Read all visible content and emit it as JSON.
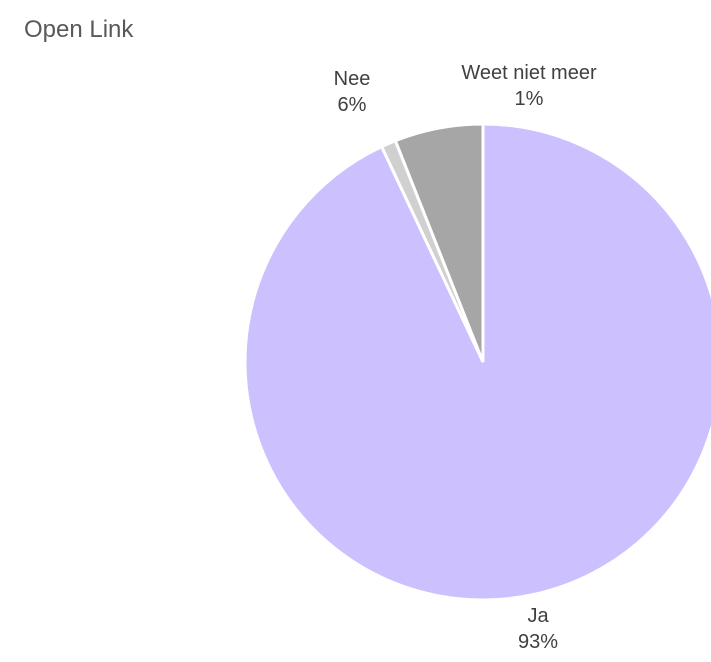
{
  "chart_data": {
    "type": "pie",
    "title": "Open Link",
    "slices": [
      {
        "label": "Ja",
        "value": 93,
        "display": "93%",
        "color": "#CCC0FF"
      },
      {
        "label": "Weet niet meer",
        "value": 1,
        "display": "1%",
        "color": "#D0D0D0"
      },
      {
        "label": "Nee",
        "value": 6,
        "display": "6%",
        "color": "#A6A6A6"
      }
    ],
    "legend": "none",
    "data_labels": "outside"
  }
}
